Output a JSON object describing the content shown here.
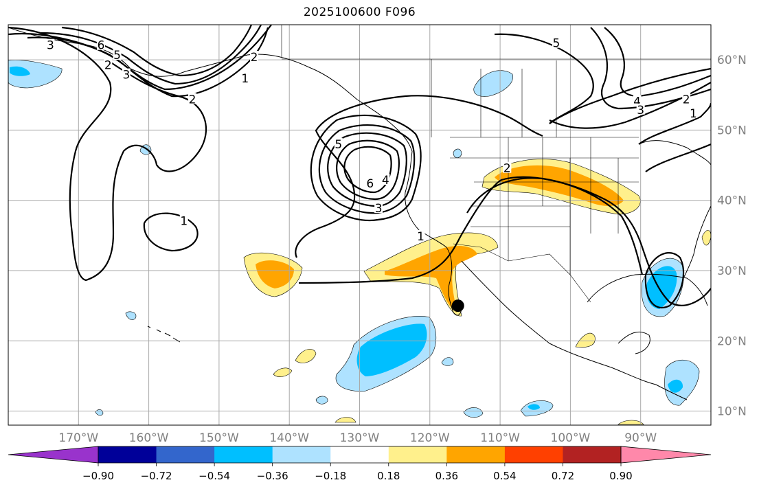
{
  "title": "2025100600 F096",
  "map": {
    "lon_range": [
      -180,
      -80
    ],
    "lat_range": [
      8,
      65
    ],
    "gridlines": true,
    "lon_ticks": [
      {
        "value": -170,
        "label": "170°W"
      },
      {
        "value": -160,
        "label": "160°W"
      },
      {
        "value": -150,
        "label": "150°W"
      },
      {
        "value": -140,
        "label": "140°W"
      },
      {
        "value": -130,
        "label": "130°W"
      },
      {
        "value": -120,
        "label": "120°W"
      },
      {
        "value": -110,
        "label": "110°W"
      },
      {
        "value": -100,
        "label": "100°W"
      },
      {
        "value": -90,
        "label": "90°W"
      }
    ],
    "lat_ticks": [
      {
        "value": 60,
        "label": "60°N"
      },
      {
        "value": 50,
        "label": "50°N"
      },
      {
        "value": 40,
        "label": "40°N"
      },
      {
        "value": 30,
        "label": "30°N"
      },
      {
        "value": 20,
        "label": "20°N"
      },
      {
        "value": 10,
        "label": "10°N"
      }
    ],
    "marker": {
      "lon": -116.0,
      "lat": 25.0,
      "color": "#000000"
    }
  },
  "colorbar": {
    "ticks": [
      "−0.90",
      "−0.72",
      "−0.54",
      "−0.36",
      "−0.18",
      "0.18",
      "0.36",
      "0.54",
      "0.72",
      "0.90"
    ],
    "colors": [
      "#9933cc",
      "#000099",
      "#3366cc",
      "#00bfff",
      "#aee2ff",
      "#ffffff",
      "#fff08c",
      "#ffa500",
      "#ff4000",
      "#b22222",
      "#ff88aa"
    ]
  },
  "contour_labels": [
    {
      "text": "3",
      "lon": -174,
      "lat": 62.0
    },
    {
      "text": "6",
      "lon": -166.8,
      "lat": 62.0
    },
    {
      "text": "5",
      "lon": -164.5,
      "lat": 60.6
    },
    {
      "text": "2",
      "lon": -165.8,
      "lat": 59.2
    },
    {
      "text": "3",
      "lon": -163.2,
      "lat": 57.8
    },
    {
      "text": "2",
      "lon": -145,
      "lat": 60.3
    },
    {
      "text": "1",
      "lon": -146.3,
      "lat": 57.3
    },
    {
      "text": "2",
      "lon": -153.8,
      "lat": 54.3
    },
    {
      "text": "5",
      "lon": -102,
      "lat": 62.3
    },
    {
      "text": "4",
      "lon": -90.5,
      "lat": 54.0
    },
    {
      "text": "3",
      "lon": -90,
      "lat": 52.8
    },
    {
      "text": "2",
      "lon": -83.5,
      "lat": 54.3
    },
    {
      "text": "1",
      "lon": -82.5,
      "lat": 52.3
    },
    {
      "text": "5",
      "lon": -133,
      "lat": 47.9
    },
    {
      "text": "6",
      "lon": -128.5,
      "lat": 42.3
    },
    {
      "text": "4",
      "lon": -126.3,
      "lat": 42.8
    },
    {
      "text": "3",
      "lon": -127.3,
      "lat": 38.8
    },
    {
      "text": "1",
      "lon": -121.3,
      "lat": 34.8
    },
    {
      "text": "2",
      "lon": -109,
      "lat": 44.5
    },
    {
      "text": "1",
      "lon": -155,
      "lat": 37.0
    }
  ]
}
